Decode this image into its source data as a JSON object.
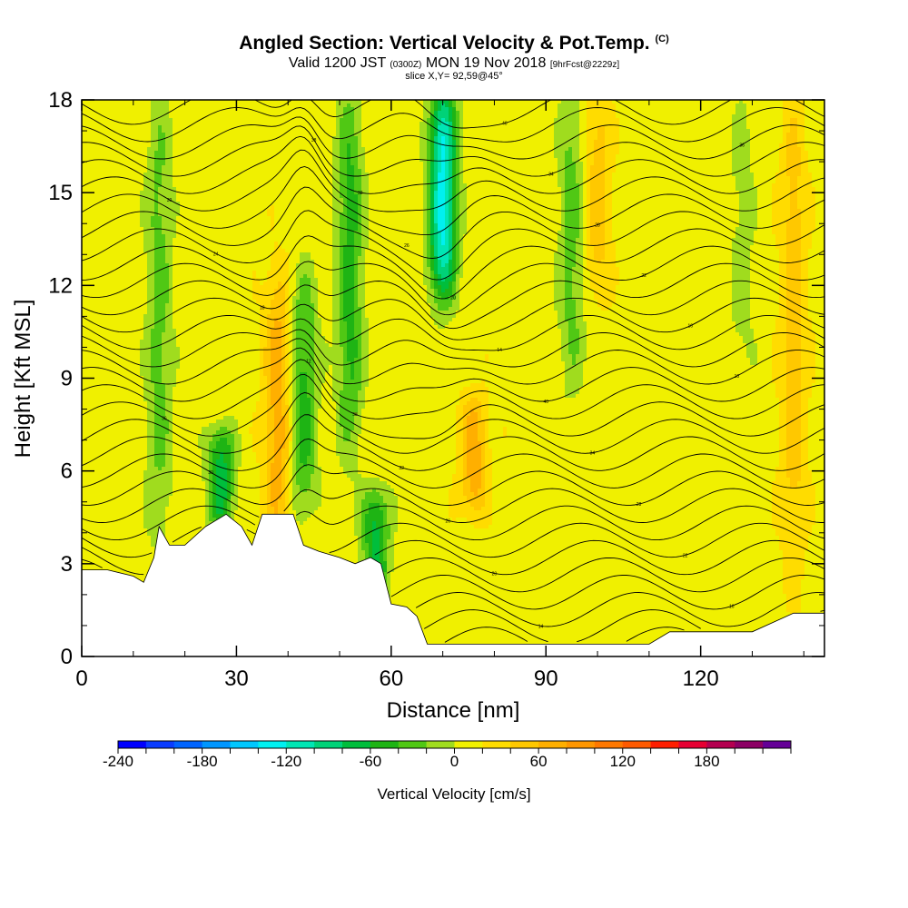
{
  "titles": {
    "main": "Angled Section: Vertical Velocity & Pot.Temp.",
    "main_tag": "(C)",
    "valid_prefix": "Valid 1200 JST",
    "valid_utc": "(0300Z)",
    "valid_date": "MON 19 Nov 2018",
    "valid_fcst": "[9hrFcst@2229z]",
    "slice": "slice X,Y= 92,59@45°"
  },
  "chart_data": {
    "type": "heatmap",
    "title": "Angled Section: Vertical Velocity & Pot.Temp.",
    "xlabel": "Distance [nm]",
    "ylabel": "Height [Kft MSL]",
    "xlim": [
      0,
      144
    ],
    "ylim": [
      0,
      18
    ],
    "x_ticks": [
      0,
      30,
      60,
      90,
      120
    ],
    "x_tick_labels": [
      "0",
      "30",
      "60",
      "90",
      "120"
    ],
    "y_ticks": [
      0,
      3,
      6,
      9,
      12,
      15,
      18
    ],
    "y_tick_labels": [
      "0",
      "3",
      "6",
      "9",
      "12",
      "15",
      "18"
    ],
    "colorbar": {
      "label": "Vertical Velocity [cm/s]",
      "min": -240,
      "max": 240,
      "step": 20,
      "tick_values": [
        -240,
        -180,
        -120,
        -60,
        0,
        60,
        120,
        180
      ],
      "tick_labels": [
        "-240",
        "-180",
        "-120",
        "-60",
        "0",
        "60",
        "120",
        "180"
      ],
      "colors": [
        "#0000ff",
        "#0a3cff",
        "#0064ff",
        "#0096ff",
        "#00c8ff",
        "#00f0f0",
        "#00e6b4",
        "#00d278",
        "#00be3c",
        "#1eb414",
        "#50c814",
        "#a0dc1e",
        "#f0f000",
        "#ffdc00",
        "#ffc800",
        "#ffaf00",
        "#ff9600",
        "#ff7800",
        "#ff5a00",
        "#ff1e00",
        "#e60032",
        "#b40050",
        "#8c0064",
        "#640096"
      ]
    },
    "vertical_velocity_features": [
      {
        "x": 15,
        "z_range": [
          4,
          18
        ],
        "w": -40
      },
      {
        "x": 27,
        "z_range": [
          4.5,
          7
        ],
        "w": -80
      },
      {
        "x": 43,
        "z_range": [
          5,
          12
        ],
        "w": -60
      },
      {
        "x": 52,
        "z_range": [
          7,
          18
        ],
        "w": -60
      },
      {
        "x": 57,
        "z_range": [
          2,
          5
        ],
        "w": -80
      },
      {
        "x": 70,
        "z_range": [
          12,
          18
        ],
        "w": -140
      },
      {
        "x": 95,
        "z_range": [
          9,
          18
        ],
        "w": -40
      },
      {
        "x": 128,
        "z_range": [
          9,
          18
        ],
        "w": -20
      },
      {
        "x": 38,
        "z_range": [
          4,
          12
        ],
        "w": 60
      },
      {
        "x": 76,
        "z_range": [
          5,
          8
        ],
        "w": 60
      },
      {
        "x": 100,
        "z_range": [
          12,
          18
        ],
        "w": 40
      },
      {
        "x": 138,
        "z_range": [
          3,
          18
        ],
        "w": 40
      }
    ],
    "potential_temperature_contour_labels": [
      "10",
      "12",
      "14",
      "16",
      "18",
      "20",
      "22",
      "24",
      "26",
      "28",
      "30",
      "32",
      "34",
      "36",
      "38",
      "40"
    ],
    "terrain_height_kft": [
      [
        0,
        2.8
      ],
      [
        5,
        2.8
      ],
      [
        10,
        2.6
      ],
      [
        12,
        2.4
      ],
      [
        14,
        3.2
      ],
      [
        15,
        4.2
      ],
      [
        17,
        3.6
      ],
      [
        20,
        3.6
      ],
      [
        24,
        4.2
      ],
      [
        28,
        4.6
      ],
      [
        31,
        4.2
      ],
      [
        33,
        3.6
      ],
      [
        35,
        4.6
      ],
      [
        41,
        4.6
      ],
      [
        43,
        3.6
      ],
      [
        46,
        3.4
      ],
      [
        50,
        3.2
      ],
      [
        53,
        3.0
      ],
      [
        56,
        3.2
      ],
      [
        58,
        3.0
      ],
      [
        60,
        1.7
      ],
      [
        63,
        1.6
      ],
      [
        65,
        1.3
      ],
      [
        67,
        0.4
      ],
      [
        72,
        0.4
      ],
      [
        90,
        0.4
      ],
      [
        110,
        0.4
      ],
      [
        114,
        0.8
      ],
      [
        130,
        0.8
      ],
      [
        138,
        1.4
      ],
      [
        144,
        1.4
      ]
    ]
  }
}
